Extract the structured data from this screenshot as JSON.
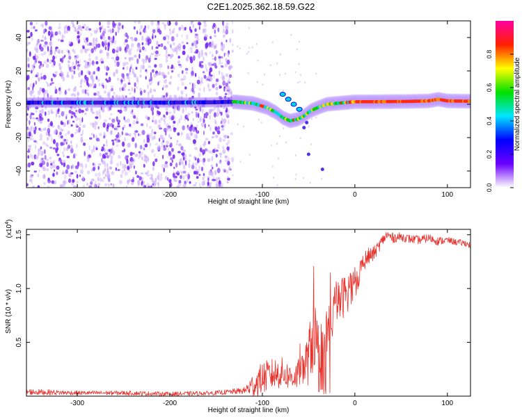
{
  "title": "C2E1.2025.362.18.59.G22",
  "colors": {
    "background": "#ffffff",
    "axis": "#000000",
    "speckle": "#7a2cf0",
    "speckle_light": "#c8a8f8",
    "snr_line": "#e8322c"
  },
  "chart_data": [
    {
      "type": "heatmap",
      "name": "spectrogram",
      "title": "C2E1.2025.362.18.59.G22",
      "xlabel": "Height of straight line (km)",
      "ylabel": "Frequency (Hz)",
      "xlim": [
        -355,
        125
      ],
      "ylim": [
        -50,
        50
      ],
      "xticks": [
        -300,
        -200,
        -100,
        0,
        100
      ],
      "yticks": [
        -40,
        -20,
        0,
        20,
        40
      ],
      "noise_region_x": [
        -355,
        -132
      ],
      "ridge": {
        "x": [
          -355,
          -300,
          -250,
          -200,
          -150,
          -130,
          -110,
          -95,
          -85,
          -78,
          -70,
          -62,
          -55,
          -48,
          -40,
          -30,
          -20,
          -10,
          0,
          20,
          40,
          60,
          80,
          90,
          100,
          125
        ],
        "y": [
          1,
          1,
          1,
          1,
          1.2,
          1.5,
          0.5,
          -2,
          -5,
          -8,
          -10,
          -9,
          -7,
          -4,
          -2,
          0,
          0.5,
          1,
          1.5,
          1.5,
          1.6,
          1.7,
          2,
          3,
          2,
          1.8
        ]
      },
      "side_branch": {
        "x": [
          -78,
          -72,
          -66,
          -60
        ],
        "y": [
          6,
          3,
          0,
          -3
        ]
      },
      "colorbar": {
        "label": "Normalized spectral amplitude",
        "range": [
          0,
          1
        ],
        "ticks": [
          "0.0",
          "0.2",
          "0.4",
          "0.6",
          "0.8"
        ],
        "stops": [
          "#ffffff",
          "#6a00ff",
          "#0000ff",
          "#00e5ff",
          "#00e000",
          "#ffff00",
          "#ff2000",
          "#ff00a0"
        ]
      }
    },
    {
      "type": "line",
      "name": "snr",
      "xlabel": "Height of straight line (km)",
      "ylabel": "SNR (10 * v/v)",
      "y_scale_label": "(x10",
      "y_scale_exponent": "4",
      "y_scale_suffix": ")",
      "xlim": [
        -355,
        125
      ],
      "ylim": [
        0,
        1.55
      ],
      "xticks": [
        -300,
        -200,
        -100,
        0,
        100
      ],
      "yticks": [
        0.5,
        1.0,
        1.5
      ],
      "ytick_labels": [
        "0.5",
        "1.0",
        "1.5"
      ],
      "series": [
        {
          "name": "SNR",
          "x": [
            -355,
            -300,
            -250,
            -200,
            -150,
            -120,
            -110,
            -100,
            -90,
            -80,
            -70,
            -60,
            -50,
            -45,
            -40,
            -35,
            -30,
            -25,
            -20,
            -15,
            -10,
            -5,
            0,
            5,
            10,
            15,
            20,
            25,
            30,
            35,
            40,
            50,
            60,
            70,
            80,
            90,
            100,
            110,
            120,
            125
          ],
          "y": [
            0.04,
            0.03,
            0.03,
            0.02,
            0.03,
            0.05,
            0.1,
            0.17,
            0.2,
            0.22,
            0.18,
            0.2,
            0.35,
            0.6,
            0.45,
            0.4,
            0.55,
            0.75,
            0.85,
            0.9,
            0.95,
            1.0,
            1.05,
            1.15,
            1.25,
            1.3,
            1.32,
            1.38,
            1.45,
            1.5,
            1.47,
            1.48,
            1.46,
            1.45,
            1.47,
            1.44,
            1.45,
            1.43,
            1.42,
            1.4
          ],
          "noise_amp": [
            0.03,
            0.02,
            0.02,
            0.02,
            0.02,
            0.03,
            0.12,
            0.15,
            0.15,
            0.15,
            0.12,
            0.15,
            0.25,
            0.4,
            0.3,
            0.3,
            0.3,
            0.25,
            0.2,
            0.2,
            0.2,
            0.18,
            0.15,
            0.12,
            0.1,
            0.08,
            0.07,
            0.06,
            0.05,
            0.05,
            0.05,
            0.04,
            0.04,
            0.04,
            0.04,
            0.04,
            0.03,
            0.03,
            0.03,
            0.03
          ]
        }
      ]
    }
  ]
}
